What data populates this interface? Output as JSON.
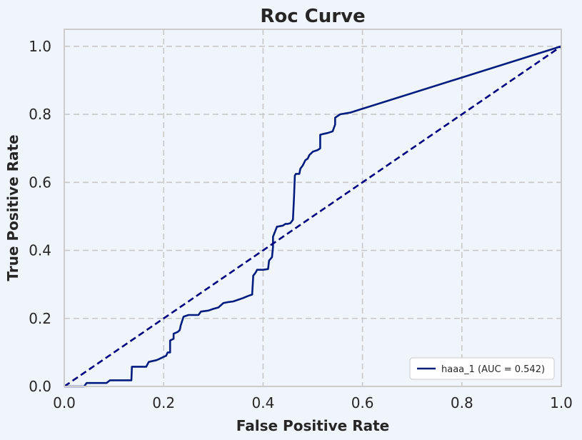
{
  "chart_data": {
    "type": "line",
    "title": "Roc Curve",
    "xlabel": "False Positive Rate",
    "ylabel": "True Positive Rate",
    "xlim": [
      0.0,
      1.0
    ],
    "ylim": [
      0.0,
      1.05
    ],
    "xticks": [
      "0.0",
      "0.2",
      "0.4",
      "0.6",
      "0.8",
      "1.0"
    ],
    "yticks": [
      "0.0",
      "0.2",
      "0.4",
      "0.6",
      "0.8",
      "1.0"
    ],
    "grid": true,
    "legend_position": "lower-right",
    "series": [
      {
        "name": "haaa_1 (AUC = 0.542)",
        "color": "#001c7f",
        "style": "solid",
        "x": [
          0.0,
          0.04,
          0.045,
          0.085,
          0.092,
          0.135,
          0.136,
          0.165,
          0.17,
          0.185,
          0.19,
          0.2,
          0.205,
          0.207,
          0.208,
          0.213,
          0.213,
          0.22,
          0.22,
          0.228,
          0.232,
          0.233,
          0.234,
          0.24,
          0.25,
          0.27,
          0.275,
          0.29,
          0.3,
          0.31,
          0.32,
          0.33,
          0.34,
          0.35,
          0.36,
          0.37,
          0.378,
          0.38,
          0.38,
          0.385,
          0.388,
          0.4,
          0.41,
          0.412,
          0.418,
          0.42,
          0.42,
          0.428,
          0.43,
          0.44,
          0.445,
          0.45,
          0.455,
          0.46,
          0.462,
          0.464,
          0.466,
          0.473,
          0.475,
          0.48,
          0.485,
          0.49,
          0.493,
          0.5,
          0.51,
          0.515,
          0.515,
          0.52,
          0.53,
          0.54,
          0.545,
          0.545,
          0.555,
          0.575,
          1.0
        ],
        "y": [
          0.0,
          0.0,
          0.01,
          0.01,
          0.018,
          0.018,
          0.058,
          0.058,
          0.072,
          0.077,
          0.08,
          0.087,
          0.09,
          0.097,
          0.1,
          0.1,
          0.135,
          0.14,
          0.155,
          0.16,
          0.165,
          0.17,
          0.178,
          0.205,
          0.21,
          0.21,
          0.22,
          0.223,
          0.228,
          0.232,
          0.245,
          0.248,
          0.25,
          0.255,
          0.26,
          0.266,
          0.27,
          0.32,
          0.325,
          0.335,
          0.343,
          0.343,
          0.345,
          0.37,
          0.38,
          0.41,
          0.44,
          0.47,
          0.47,
          0.473,
          0.478,
          0.478,
          0.48,
          0.49,
          0.55,
          0.62,
          0.625,
          0.625,
          0.64,
          0.65,
          0.665,
          0.67,
          0.68,
          0.69,
          0.695,
          0.7,
          0.74,
          0.742,
          0.745,
          0.75,
          0.77,
          0.79,
          0.8,
          0.805,
          1.0
        ]
      },
      {
        "color": "#000080",
        "style": "dashed",
        "x": [
          0.0,
          1.0
        ],
        "y": [
          0.0,
          1.0
        ]
      }
    ]
  }
}
